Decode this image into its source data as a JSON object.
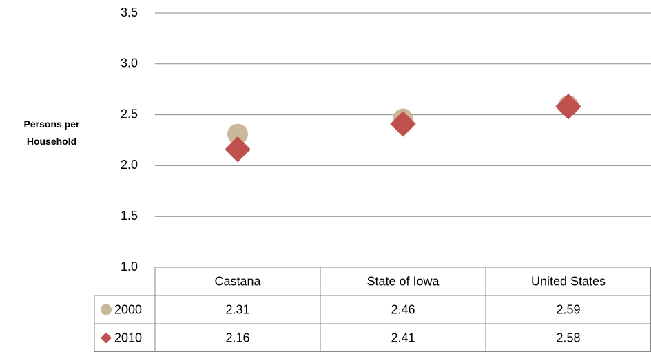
{
  "chart_data": {
    "type": "scatter",
    "y_label": "Persons per Household",
    "categories": [
      "Castana",
      "State of Iowa",
      "United States"
    ],
    "series": [
      {
        "name": "2000",
        "color": "#c9b99a",
        "marker": "circle",
        "values": [
          2.31,
          2.46,
          2.59
        ]
      },
      {
        "name": "2010",
        "color": "#c0504d",
        "marker": "diamond",
        "values": [
          2.16,
          2.41,
          2.58
        ]
      }
    ],
    "ylim": [
      1,
      3.5
    ],
    "yticks": [
      {
        "value": 1,
        "label": "1.0"
      },
      1.5,
      {
        "value": 2,
        "label": "2.0"
      },
      2.5,
      {
        "value": 3,
        "label": "3.0"
      },
      3.5
    ],
    "grid": true,
    "data_table": true
  }
}
